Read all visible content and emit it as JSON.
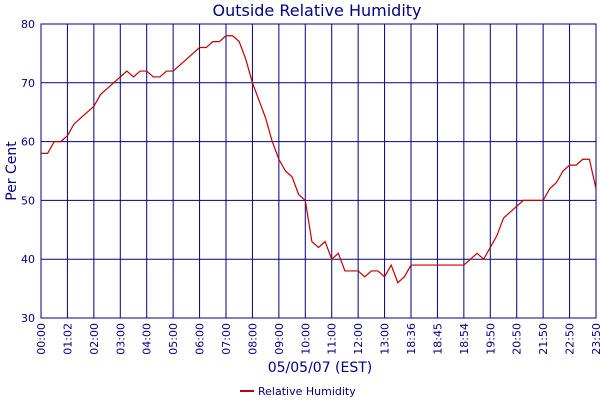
{
  "chart_data": {
    "type": "line",
    "title": "Outside Relative Humidity",
    "y_label": "Per Cent",
    "x_label": "05/05/07 (EST)",
    "categories": [
      "00:00",
      null,
      null,
      null,
      "01:02",
      null,
      null,
      null,
      "02:00",
      null,
      null,
      null,
      "03:00",
      null,
      null,
      null,
      "04:00",
      null,
      null,
      null,
      "05:00",
      null,
      null,
      null,
      "06:00",
      null,
      null,
      null,
      "07:00",
      null,
      null,
      null,
      "08:00",
      null,
      null,
      null,
      "09:00",
      null,
      null,
      null,
      "10:00",
      null,
      null,
      null,
      "11:00",
      null,
      null,
      null,
      "12:00",
      null,
      null,
      null,
      "13:00",
      null,
      null,
      null,
      "18:36",
      null,
      null,
      null,
      "18:45",
      null,
      null,
      null,
      "18:54",
      null,
      null,
      null,
      "19:50",
      null,
      null,
      null,
      "20:50",
      null,
      null,
      null,
      "21:50",
      null,
      null,
      null,
      "22:50",
      null,
      null,
      null,
      "23:50"
    ],
    "series": [
      {
        "name": "Relative Humidity",
        "color": "#c00000",
        "values": [
          58,
          58,
          60,
          60,
          61,
          63,
          64,
          65,
          66,
          68,
          69,
          70,
          71,
          72,
          71,
          72,
          72,
          71,
          71,
          72,
          72,
          73,
          74,
          75,
          76,
          76,
          77,
          77,
          78,
          78,
          77,
          74,
          70,
          67,
          64,
          60,
          57,
          55,
          54,
          51,
          50,
          43,
          42,
          43,
          40,
          41,
          38,
          38,
          38,
          37,
          38,
          38,
          37,
          39,
          36,
          37,
          39,
          39,
          39,
          39,
          39,
          39,
          39,
          39,
          39,
          40,
          41,
          40,
          42,
          44,
          47,
          48,
          49,
          50,
          50,
          50,
          50,
          52,
          53,
          55,
          56,
          56,
          57,
          57,
          52
        ]
      }
    ],
    "ylim": [
      30,
      80
    ],
    "yticks": [
      30,
      40,
      50,
      60,
      70,
      80
    ],
    "grid": true
  }
}
